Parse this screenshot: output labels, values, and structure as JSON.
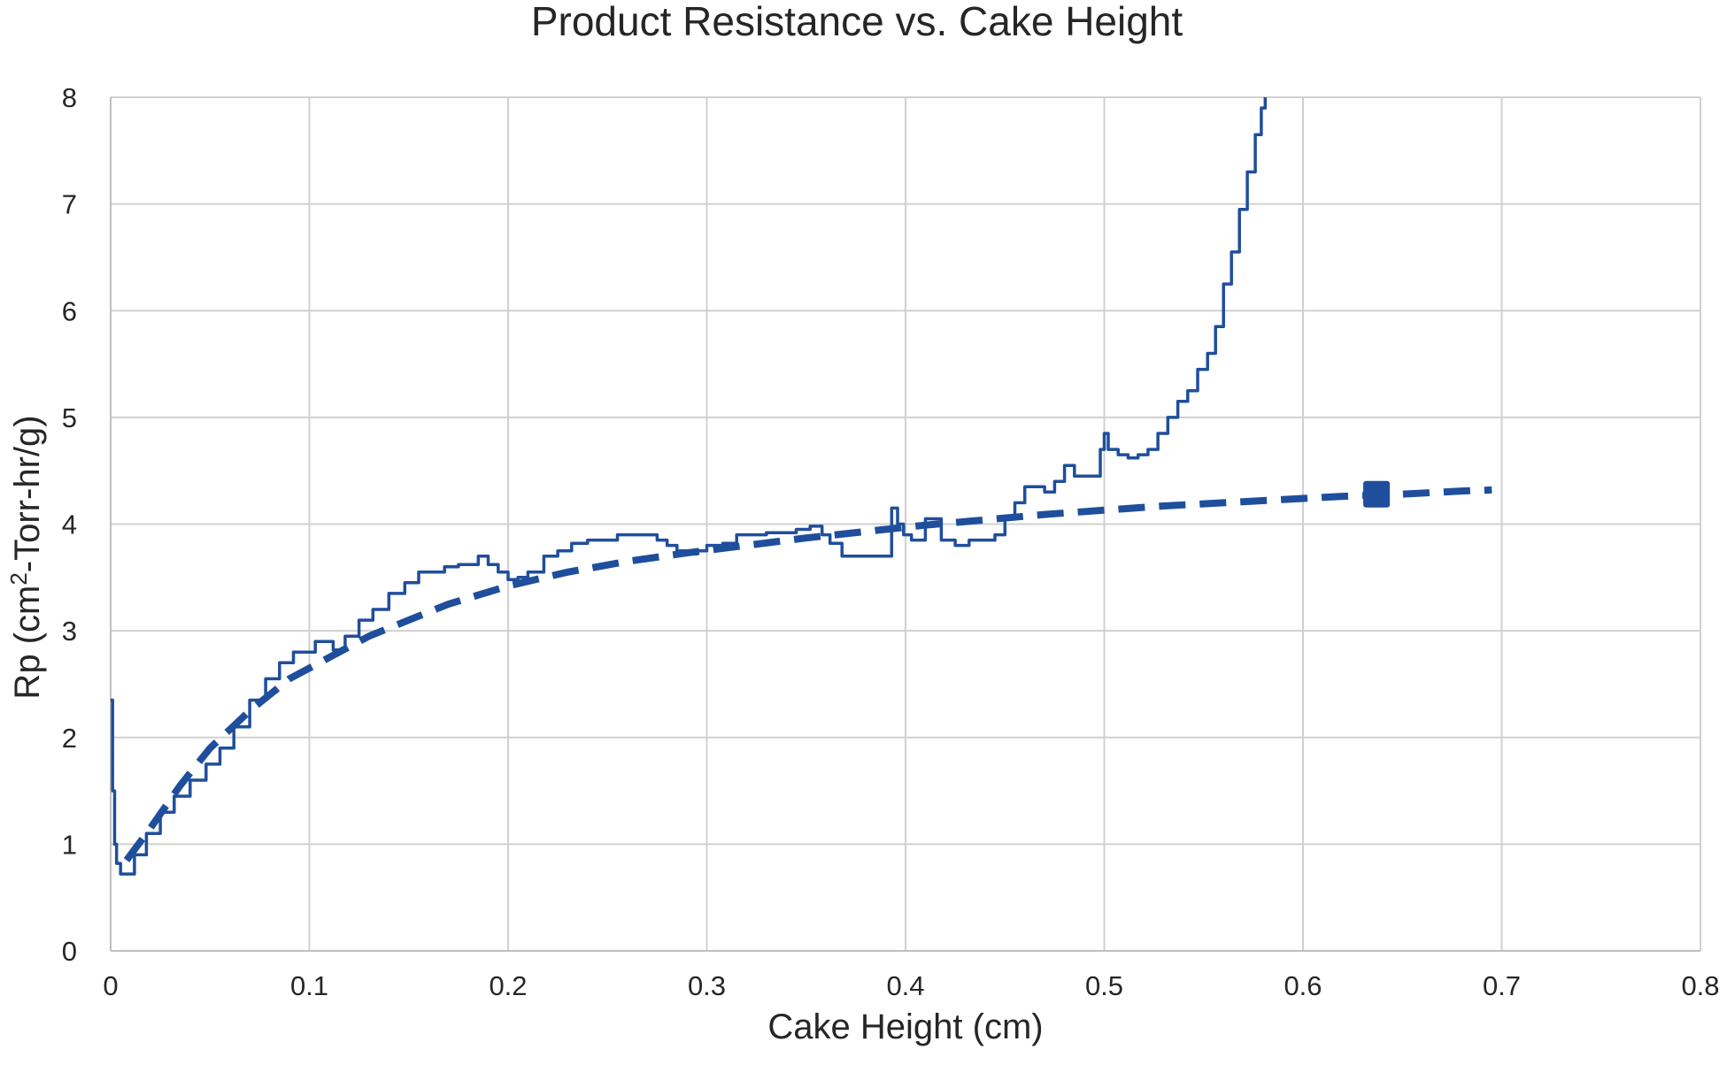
{
  "chart_data": {
    "type": "line",
    "title": "Product Resistance vs. Cake Height",
    "xlabel": "Cake Height (cm)",
    "ylabel_prefix": "Rp (cm",
    "ylabel_sup": "2",
    "ylabel_suffix": "-Torr-hr/g)",
    "xlim": [
      0,
      0.8
    ],
    "ylim": [
      0,
      8
    ],
    "xticks": [
      "0",
      "0.1",
      "0.2",
      "0.3",
      "0.4",
      "0.5",
      "0.6",
      "0.7",
      "0.8"
    ],
    "yticks": [
      "0",
      "1",
      "2",
      "3",
      "4",
      "5",
      "6",
      "7",
      "8"
    ],
    "grid": true,
    "legend": "none",
    "colors": {
      "series": "#1f4e9c",
      "grid": "#d0d0d0",
      "text": "#262626"
    },
    "series": [
      {
        "style": "solid",
        "x": [
          0.0,
          0.001,
          0.002,
          0.003,
          0.005,
          0.008,
          0.012,
          0.018,
          0.025,
          0.032,
          0.04,
          0.048,
          0.055,
          0.062,
          0.07,
          0.078,
          0.085,
          0.092,
          0.098,
          0.103,
          0.108,
          0.112,
          0.118,
          0.125,
          0.132,
          0.14,
          0.148,
          0.155,
          0.162,
          0.168,
          0.175,
          0.18,
          0.185,
          0.19,
          0.195,
          0.2,
          0.205,
          0.21,
          0.218,
          0.225,
          0.232,
          0.24,
          0.248,
          0.255,
          0.262,
          0.27,
          0.275,
          0.28,
          0.285,
          0.29,
          0.295,
          0.3,
          0.308,
          0.315,
          0.322,
          0.33,
          0.338,
          0.345,
          0.352,
          0.358,
          0.362,
          0.368,
          0.375,
          0.382,
          0.388,
          0.393,
          0.396,
          0.399,
          0.403,
          0.41,
          0.418,
          0.425,
          0.432,
          0.438,
          0.445,
          0.45,
          0.455,
          0.46,
          0.465,
          0.47,
          0.475,
          0.48,
          0.485,
          0.49,
          0.495,
          0.498,
          0.5,
          0.502,
          0.507,
          0.512,
          0.517,
          0.522,
          0.527,
          0.532,
          0.537,
          0.542,
          0.547,
          0.552,
          0.556,
          0.56,
          0.564,
          0.568,
          0.572,
          0.576,
          0.579,
          0.581
        ],
        "y": [
          2.35,
          1.5,
          1.0,
          0.82,
          0.72,
          0.72,
          0.9,
          1.1,
          1.3,
          1.45,
          1.6,
          1.75,
          1.9,
          2.1,
          2.35,
          2.55,
          2.7,
          2.8,
          2.8,
          2.9,
          2.9,
          2.82,
          2.95,
          3.1,
          3.2,
          3.35,
          3.45,
          3.55,
          3.55,
          3.6,
          3.62,
          3.62,
          3.7,
          3.62,
          3.55,
          3.48,
          3.5,
          3.55,
          3.7,
          3.75,
          3.82,
          3.85,
          3.85,
          3.9,
          3.9,
          3.9,
          3.85,
          3.8,
          3.75,
          3.72,
          3.75,
          3.8,
          3.82,
          3.9,
          3.9,
          3.92,
          3.92,
          3.95,
          3.98,
          3.9,
          3.82,
          3.7,
          3.7,
          3.7,
          3.7,
          4.15,
          4.0,
          3.9,
          3.85,
          4.05,
          3.85,
          3.8,
          3.85,
          3.85,
          3.9,
          4.05,
          4.2,
          4.35,
          4.35,
          4.3,
          4.4,
          4.55,
          4.45,
          4.45,
          4.45,
          4.7,
          4.85,
          4.7,
          4.65,
          4.62,
          4.65,
          4.7,
          4.85,
          5.0,
          5.15,
          5.25,
          5.45,
          5.6,
          5.85,
          6.25,
          6.55,
          6.95,
          7.3,
          7.65,
          7.9,
          8.0
        ]
      },
      {
        "style": "dashed",
        "x": [
          0.008,
          0.02,
          0.035,
          0.05,
          0.07,
          0.09,
          0.11,
          0.13,
          0.15,
          0.17,
          0.2,
          0.23,
          0.26,
          0.29,
          0.32,
          0.35,
          0.38,
          0.41,
          0.44,
          0.47,
          0.5,
          0.53,
          0.56,
          0.59,
          0.62,
          0.65,
          0.68,
          0.695
        ],
        "y": [
          0.85,
          1.15,
          1.55,
          1.9,
          2.25,
          2.55,
          2.75,
          2.95,
          3.1,
          3.25,
          3.42,
          3.55,
          3.65,
          3.73,
          3.8,
          3.87,
          3.93,
          3.99,
          4.04,
          4.09,
          4.13,
          4.17,
          4.2,
          4.23,
          4.26,
          4.28,
          4.31,
          4.32
        ]
      }
    ],
    "marker": {
      "x": 0.637,
      "y": 4.28,
      "shape": "square"
    }
  }
}
